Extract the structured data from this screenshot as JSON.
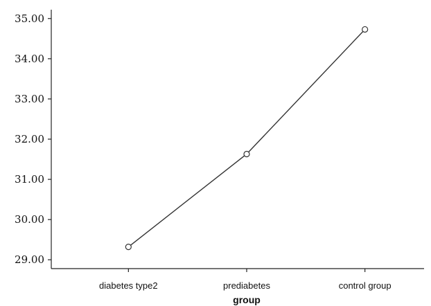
{
  "chart_data": {
    "type": "line",
    "categories": [
      "diabetes type2",
      "prediabetes",
      "control group"
    ],
    "values": [
      29.32,
      31.63,
      34.73
    ],
    "title": "",
    "xlabel": "group",
    "ylabel": "",
    "ylim": [
      28.78,
      35.22
    ],
    "yticks": [
      "29.00",
      "30.00",
      "31.00",
      "32.00",
      "33.00",
      "34.00",
      "35.00"
    ],
    "grid": false,
    "line_color": "#333333",
    "marker": "open-circle"
  }
}
